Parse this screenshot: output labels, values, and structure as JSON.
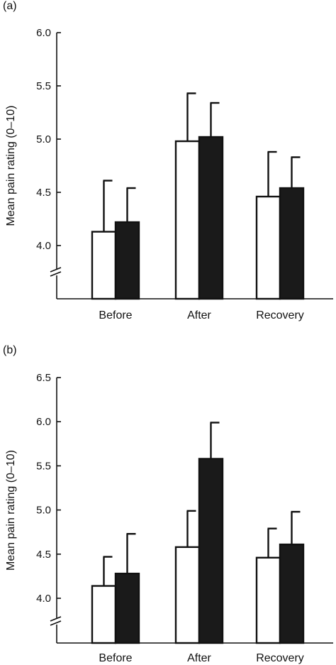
{
  "colors": {
    "open_bar": "#ffffff",
    "filled_bar": "#1a1a1a",
    "ink": "#111111"
  },
  "chart_data": [
    {
      "type": "bar",
      "panel_label": "(a)",
      "ylabel": "Mean pain rating (0–10)",
      "ylim": [
        3.5,
        6.0
      ],
      "axis_break": true,
      "yticks": [
        "4.0",
        "4.5",
        "5.0",
        "5.5",
        "6.0"
      ],
      "categories": [
        "Before",
        "After",
        "Recovery"
      ],
      "legend": "none",
      "series": [
        {
          "style": "open",
          "values": [
            4.13,
            4.98,
            4.46
          ],
          "errors": [
            0.48,
            0.45,
            0.42
          ]
        },
        {
          "style": "filled",
          "values": [
            4.22,
            5.02,
            4.54
          ],
          "errors": [
            0.32,
            0.32,
            0.29
          ]
        }
      ]
    },
    {
      "type": "bar",
      "panel_label": "(b)",
      "ylabel": "Mean pain rating (0–10)",
      "ylim": [
        3.5,
        6.5
      ],
      "axis_break": true,
      "yticks": [
        "4.0",
        "4.5",
        "5.0",
        "5.5",
        "6.0",
        "6.5"
      ],
      "categories": [
        "Before",
        "After",
        "Recovery"
      ],
      "legend": "none",
      "series": [
        {
          "style": "open",
          "values": [
            4.14,
            4.58,
            4.46
          ],
          "errors": [
            0.33,
            0.41,
            0.33
          ]
        },
        {
          "style": "filled",
          "values": [
            4.28,
            5.58,
            4.61
          ],
          "errors": [
            0.45,
            0.41,
            0.37
          ]
        }
      ]
    }
  ]
}
